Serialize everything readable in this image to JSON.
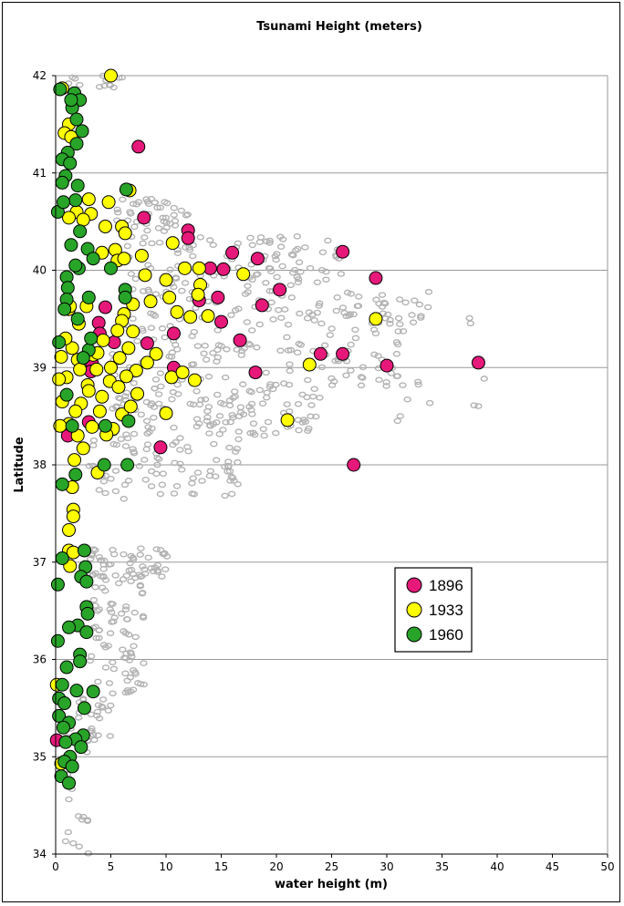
{
  "chart_data": {
    "type": "scatter",
    "title": "Tsunami Height (meters)",
    "xlabel": "water height (m)",
    "ylabel": "Latitude",
    "xlim": [
      0,
      50
    ],
    "ylim": [
      34,
      42
    ],
    "x_ticks": [
      "0",
      "5",
      "10",
      "15",
      "20",
      "25",
      "30",
      "35",
      "40",
      "45",
      "50"
    ],
    "y_ticks": [
      "34",
      "35",
      "36",
      "37",
      "38",
      "39",
      "40",
      "41",
      "42"
    ],
    "grid": "horizontal",
    "legend_position": "right",
    "background_series": {
      "description": "other tsunami observations",
      "color": "#b3b3b3",
      "clusters": [
        {
          "x_range": [
            0.5,
            6.5
          ],
          "y_range": [
            41.85,
            42.0
          ],
          "n": 14
        },
        {
          "x_range": [
            5.5,
            12
          ],
          "y_range": [
            40.4,
            40.75
          ],
          "n": 45
        },
        {
          "x_range": [
            6,
            26
          ],
          "y_range": [
            39.7,
            40.35
          ],
          "n": 120
        },
        {
          "x_range": [
            5,
            32
          ],
          "y_range": [
            38.8,
            39.7
          ],
          "n": 170
        },
        {
          "x_range": [
            26,
            39
          ],
          "y_range": [
            39.45,
            39.8
          ],
          "n": 25
        },
        {
          "x_range": [
            5,
            24
          ],
          "y_range": [
            38.3,
            38.8
          ],
          "n": 120
        },
        {
          "x_range": [
            3,
            17
          ],
          "y_range": [
            37.65,
            38.3
          ],
          "n": 80
        },
        {
          "x_range": [
            3,
            10.5
          ],
          "y_range": [
            36.85,
            37.15
          ],
          "n": 55
        },
        {
          "x_range": [
            3,
            8
          ],
          "y_range": [
            36.2,
            36.85
          ],
          "n": 45
        },
        {
          "x_range": [
            2.5,
            8
          ],
          "y_range": [
            35.65,
            36.2
          ],
          "n": 35
        },
        {
          "x_range": [
            1,
            5
          ],
          "y_range": [
            35.0,
            35.65
          ],
          "n": 35
        },
        {
          "x_range": [
            0.5,
            3
          ],
          "y_range": [
            34.0,
            35.0
          ],
          "n": 15
        },
        {
          "x_range": [
            30,
            39
          ],
          "y_range": [
            38.45,
            38.95
          ],
          "n": 10
        }
      ]
    },
    "series": [
      {
        "name": "1896",
        "color": "#e6197a",
        "points": [
          [
            7.5,
            41.27
          ],
          [
            8,
            40.54
          ],
          [
            12,
            40.41
          ],
          [
            12,
            40.33
          ],
          [
            16,
            40.18
          ],
          [
            18.3,
            40.12
          ],
          [
            26,
            40.19
          ],
          [
            14,
            40.02
          ],
          [
            15.2,
            40.01
          ],
          [
            20.3,
            39.8
          ],
          [
            29,
            39.92
          ],
          [
            14.7,
            39.72
          ],
          [
            13,
            39.69
          ],
          [
            18.7,
            39.64
          ],
          [
            15,
            39.47
          ],
          [
            4.5,
            39.62
          ],
          [
            3.9,
            39.46
          ],
          [
            4,
            39.35
          ],
          [
            5.3,
            39.26
          ],
          [
            8.3,
            39.25
          ],
          [
            10.7,
            39.35
          ],
          [
            16.7,
            39.28
          ],
          [
            24,
            39.14
          ],
          [
            26,
            39.14
          ],
          [
            3.3,
            39.04
          ],
          [
            10.7,
            39.0
          ],
          [
            18.1,
            38.95
          ],
          [
            30,
            39.02
          ],
          [
            38.3,
            39.05
          ],
          [
            3.0,
            38.44
          ],
          [
            1.1,
            38.3
          ],
          [
            9.5,
            38.18
          ],
          [
            27,
            38.0
          ],
          [
            0.1,
            35.17
          ],
          [
            3.2,
            38.96
          ]
        ]
      },
      {
        "name": "1933",
        "color": "#ffff00",
        "points": [
          [
            5,
            42.0
          ],
          [
            1.2,
            41.5
          ],
          [
            0.8,
            41.41
          ],
          [
            1.4,
            41.37
          ],
          [
            0.6,
            41.87
          ],
          [
            6.7,
            40.82
          ],
          [
            3,
            40.73
          ],
          [
            4.8,
            40.7
          ],
          [
            1.9,
            40.6
          ],
          [
            3.2,
            40.58
          ],
          [
            1.2,
            40.54
          ],
          [
            2.5,
            40.52
          ],
          [
            6,
            40.45
          ],
          [
            6.3,
            40.38
          ],
          [
            4.5,
            40.45
          ],
          [
            5.4,
            40.21
          ],
          [
            4.2,
            40.18
          ],
          [
            5.6,
            40.1
          ],
          [
            6.2,
            40.12
          ],
          [
            7.8,
            40.15
          ],
          [
            10.6,
            40.28
          ],
          [
            11.7,
            40.02
          ],
          [
            13.0,
            40.02
          ],
          [
            17,
            39.96
          ],
          [
            8.1,
            39.95
          ],
          [
            10,
            39.9
          ],
          [
            13.1,
            39.85
          ],
          [
            8.6,
            39.68
          ],
          [
            10.3,
            39.72
          ],
          [
            12.9,
            39.75
          ],
          [
            11.0,
            39.57
          ],
          [
            12.2,
            39.52
          ],
          [
            13.8,
            39.53
          ],
          [
            29,
            39.5
          ],
          [
            7.0,
            39.65
          ],
          [
            6.2,
            39.55
          ],
          [
            6.0,
            39.48
          ],
          [
            5.6,
            39.38
          ],
          [
            4.3,
            39.28
          ],
          [
            7.0,
            39.37
          ],
          [
            9.1,
            39.14
          ],
          [
            6.6,
            39.2
          ],
          [
            2.1,
            39.45
          ],
          [
            1.2,
            39.6
          ],
          [
            2.8,
            39.63
          ],
          [
            1.5,
            39.2
          ],
          [
            0.5,
            39.11
          ],
          [
            2.0,
            39.08
          ],
          [
            3.4,
            39.13
          ],
          [
            5.0,
            39.0
          ],
          [
            7.3,
            38.97
          ],
          [
            10.5,
            38.9
          ],
          [
            11.5,
            38.95
          ],
          [
            12.6,
            38.87
          ],
          [
            6.4,
            38.91
          ],
          [
            7.4,
            38.73
          ],
          [
            2.9,
            38.82
          ],
          [
            1.0,
            38.9
          ],
          [
            0.3,
            38.88
          ],
          [
            4.9,
            38.86
          ],
          [
            5.7,
            38.8
          ],
          [
            0.6,
            38.65
          ],
          [
            2.3,
            38.63
          ],
          [
            4.0,
            38.55
          ],
          [
            6.0,
            38.52
          ],
          [
            1.2,
            38.42
          ],
          [
            3.3,
            38.39
          ],
          [
            5.2,
            38.37
          ],
          [
            0.4,
            38.4
          ],
          [
            2.0,
            38.3
          ],
          [
            4.6,
            38.31
          ],
          [
            10,
            38.53
          ],
          [
            21,
            38.46
          ],
          [
            23,
            39.03
          ],
          [
            1.7,
            38.05
          ],
          [
            2.5,
            38.17
          ],
          [
            3.8,
            37.92
          ],
          [
            1.5,
            37.77
          ],
          [
            1.6,
            37.54
          ],
          [
            1.6,
            37.47
          ],
          [
            1.2,
            37.33
          ],
          [
            1.2,
            37.12
          ],
          [
            1.6,
            37.1
          ],
          [
            1.3,
            36.96
          ],
          [
            0.1,
            35.74
          ],
          [
            0.5,
            34.93
          ],
          [
            3.0,
            38.76
          ],
          [
            2.2,
            38.98
          ],
          [
            4.2,
            38.7
          ],
          [
            1.8,
            38.55
          ],
          [
            0.9,
            39.3
          ],
          [
            3.8,
            39.15
          ],
          [
            5.8,
            39.1
          ],
          [
            8.3,
            39.05
          ],
          [
            3.7,
            38.98
          ],
          [
            6.8,
            38.6
          ],
          [
            1.3,
            39.63
          ]
        ]
      },
      {
        "name": "1960",
        "color": "#28a428",
        "points": [
          [
            0.4,
            41.86
          ],
          [
            1.7,
            41.82
          ],
          [
            2.2,
            41.75
          ],
          [
            1.5,
            41.67
          ],
          [
            2.4,
            41.43
          ],
          [
            1.9,
            41.3
          ],
          [
            1.1,
            41.21
          ],
          [
            0.6,
            41.14
          ],
          [
            1.3,
            41.1
          ],
          [
            0.9,
            40.97
          ],
          [
            0.6,
            40.9
          ],
          [
            2.0,
            40.87
          ],
          [
            6.4,
            40.83
          ],
          [
            0.2,
            40.6
          ],
          [
            1.8,
            40.72
          ],
          [
            2.2,
            40.4
          ],
          [
            1.4,
            40.26
          ],
          [
            2.9,
            40.22
          ],
          [
            3.4,
            40.12
          ],
          [
            5.0,
            40.02
          ],
          [
            2.1,
            40.02
          ],
          [
            1.0,
            39.93
          ],
          [
            1.1,
            39.82
          ],
          [
            1.0,
            39.7
          ],
          [
            0.8,
            39.6
          ],
          [
            6.3,
            39.8
          ],
          [
            6.3,
            39.72
          ],
          [
            3.0,
            39.72
          ],
          [
            0.3,
            39.26
          ],
          [
            3.0,
            39.18
          ],
          [
            3.2,
            39.3
          ],
          [
            1.0,
            38.72
          ],
          [
            6.6,
            38.45
          ],
          [
            6.5,
            38.0
          ],
          [
            1.8,
            37.9
          ],
          [
            0.6,
            37.8
          ],
          [
            2.6,
            37.12
          ],
          [
            0.6,
            37.04
          ],
          [
            0.2,
            36.77
          ],
          [
            2.7,
            36.95
          ],
          [
            2.3,
            36.85
          ],
          [
            2.8,
            36.8
          ],
          [
            2.8,
            36.54
          ],
          [
            2.9,
            36.47
          ],
          [
            2.0,
            36.35
          ],
          [
            1.2,
            36.33
          ],
          [
            2.8,
            36.28
          ],
          [
            0.2,
            36.19
          ],
          [
            2.2,
            36.05
          ],
          [
            2.2,
            35.98
          ],
          [
            1.0,
            35.92
          ],
          [
            0.6,
            35.74
          ],
          [
            1.9,
            35.68
          ],
          [
            3.4,
            35.67
          ],
          [
            0.3,
            35.6
          ],
          [
            0.8,
            35.55
          ],
          [
            2.6,
            35.5
          ],
          [
            0.3,
            35.42
          ],
          [
            1.2,
            35.35
          ],
          [
            0.7,
            35.3
          ],
          [
            2.5,
            35.22
          ],
          [
            1.8,
            35.18
          ],
          [
            0.9,
            35.15
          ],
          [
            2.3,
            35.1
          ],
          [
            1.3,
            35.0
          ],
          [
            0.8,
            34.95
          ],
          [
            1.5,
            34.9
          ],
          [
            0.5,
            34.8
          ],
          [
            1.2,
            34.73
          ],
          [
            4.5,
            38.4
          ],
          [
            1.5,
            38.4
          ],
          [
            2.5,
            39.1
          ],
          [
            2.0,
            39.5
          ],
          [
            4.4,
            38.0
          ],
          [
            1.8,
            40.05
          ],
          [
            0.7,
            40.7
          ],
          [
            1.4,
            41.75
          ],
          [
            1.9,
            41.55
          ]
        ]
      }
    ]
  }
}
